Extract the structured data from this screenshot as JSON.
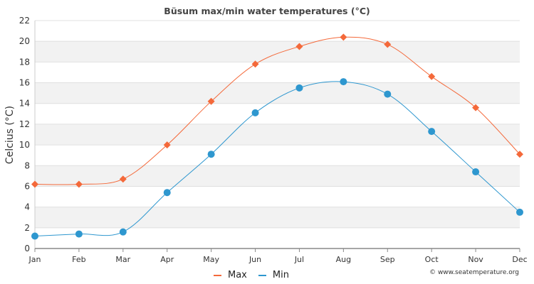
{
  "chart_data": {
    "type": "line",
    "title": "Büsum max/min water temperatures (°C)",
    "xlabel": "",
    "ylabel": "Celcius (°C)",
    "categories": [
      "Jan",
      "Feb",
      "Mar",
      "Apr",
      "May",
      "Jun",
      "Jul",
      "Aug",
      "Sep",
      "Oct",
      "Nov",
      "Dec"
    ],
    "ylim": [
      0,
      22
    ],
    "yticks": [
      0,
      2,
      4,
      6,
      8,
      10,
      12,
      14,
      16,
      18,
      20,
      22
    ],
    "grid": true,
    "legend_position": "bottom-center",
    "series": [
      {
        "name": "Max",
        "color": "#f4693a",
        "marker": "diamond",
        "values": [
          6.2,
          6.2,
          6.7,
          10.0,
          14.2,
          17.8,
          19.5,
          20.4,
          19.7,
          16.6,
          13.6,
          9.1
        ]
      },
      {
        "name": "Min",
        "color": "#2e97cf",
        "marker": "circle",
        "values": [
          1.2,
          1.4,
          1.6,
          5.4,
          9.1,
          13.1,
          15.5,
          16.1,
          14.9,
          11.3,
          7.4,
          3.5
        ]
      }
    ]
  },
  "credit": "© www.seatemperature.org"
}
